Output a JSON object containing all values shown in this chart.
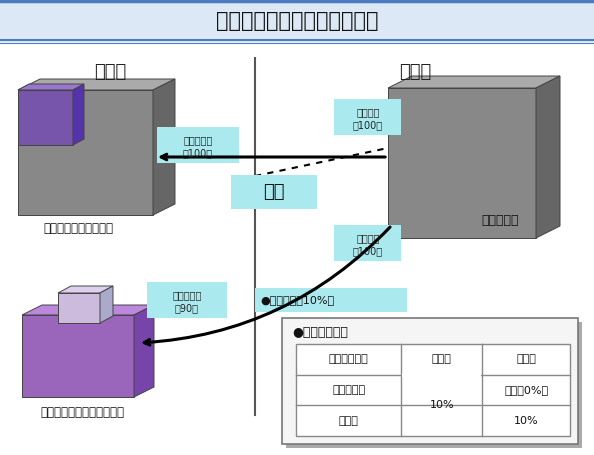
{
  "title": "利子に対する租税条約の適用",
  "title_fontsize": 15,
  "bg_color": "#eef2f7",
  "content_bg": "#ffffff",
  "header_bg": "#dce8f5",
  "japan_label": "日　本",
  "usa_label": "米　国",
  "japan_corp_finance": "日本法人（金融機関）",
  "japan_corp_other": "日本法人（その他の法人）",
  "us_corp": "米国法人等",
  "arrow1_label_top": "支障の支払",
  "arrow1_label_bottom": "（100）",
  "arrow2_label_top": "利子支払",
  "arrow2_label_bottom": "（100）",
  "arrow3_label_top": "支障の支払",
  "arrow3_label_bottom": "（90）",
  "arrow4_label_top": "利子支払",
  "arrow4_label_bottom": "（100）",
  "menzei_label": "免税",
  "gensen_label": "●源泉徴収（10%）",
  "table_title": "●源泉地国課税",
  "col1_header": "利子の受益者",
  "col2_header": "改正前",
  "col3_header": "改正後",
  "row1_col1": "金融機関等",
  "row1_col3": "免税（0%）",
  "row2_col1": "その他",
  "row2_col2": "10%",
  "row2_col3": "10%",
  "highlight_bg": "#aaeaee",
  "vertical_line_color": "#555555"
}
